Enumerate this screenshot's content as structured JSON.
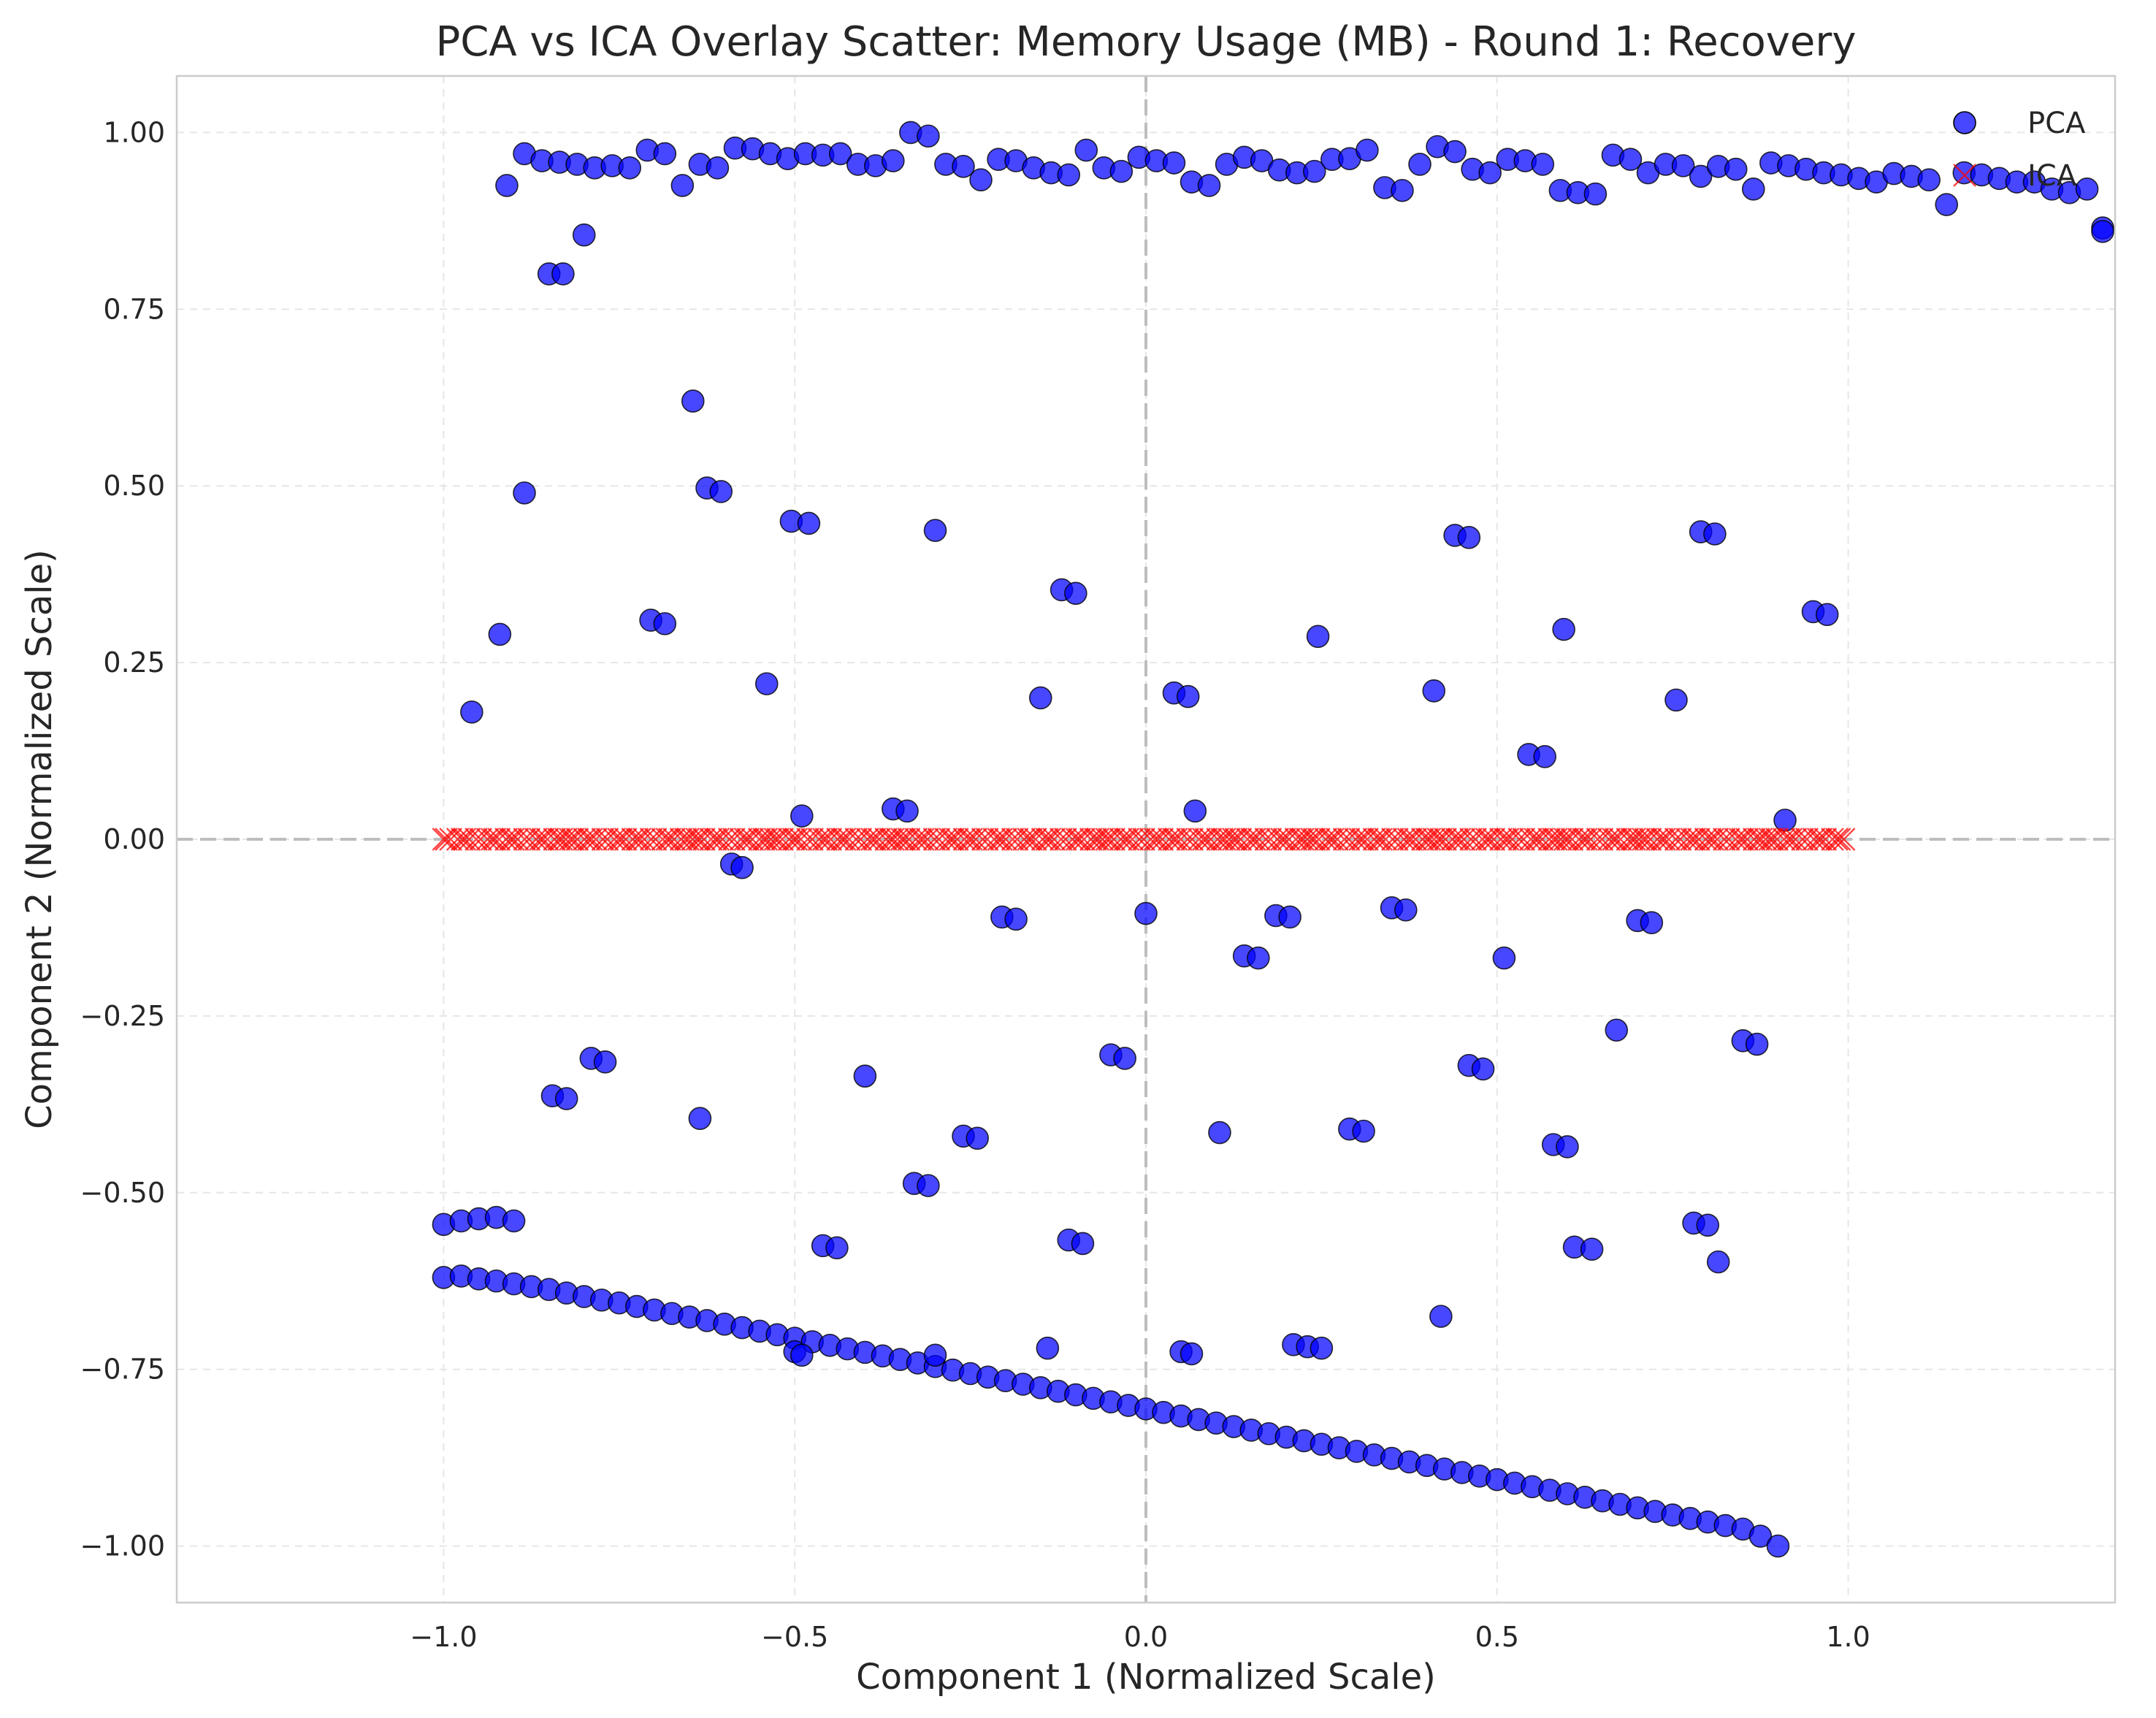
{
  "chart_data": {
    "type": "scatter",
    "title": "PCA vs ICA Overlay Scatter: Memory Usage (MB) - Round 1: Recovery",
    "xlabel": "Component 1 (Normalized Scale)",
    "ylabel": "Component 2 (Normalized Scale)",
    "xlim": [
      -1.38,
      1.38
    ],
    "ylim": [
      -1.08,
      1.08
    ],
    "xticks": [
      -1.0,
      -0.5,
      0.0,
      0.5,
      1.0
    ],
    "xtick_labels": [
      "−1.0",
      "−0.5",
      "0.0",
      "0.5",
      "1.0"
    ],
    "yticks": [
      -1.0,
      -0.75,
      -0.5,
      -0.25,
      0.0,
      0.25,
      0.5,
      0.75,
      1.0
    ],
    "ytick_labels": [
      "−1.00",
      "−0.75",
      "−0.50",
      "−0.25",
      "0.00",
      "0.25",
      "0.50",
      "0.75",
      "1.00"
    ],
    "grid": true,
    "reference_lines": {
      "x": 0,
      "y": 0
    },
    "legend_position": "top-right",
    "series": [
      {
        "name": "PCA",
        "marker": "circle",
        "color": "#0000ff",
        "edge_color": "#000000",
        "points": [
          [
            -0.91,
            0.925
          ],
          [
            -0.885,
            0.97
          ],
          [
            -0.86,
            0.96
          ],
          [
            -0.835,
            0.958
          ],
          [
            -0.81,
            0.955
          ],
          [
            -0.785,
            0.95
          ],
          [
            -0.76,
            0.953
          ],
          [
            -0.735,
            0.95
          ],
          [
            -0.71,
            0.975
          ],
          [
            -0.685,
            0.97
          ],
          [
            -0.66,
            0.925
          ],
          [
            -0.635,
            0.955
          ],
          [
            -0.61,
            0.95
          ],
          [
            -0.585,
            0.978
          ],
          [
            -0.56,
            0.977
          ],
          [
            -0.535,
            0.97
          ],
          [
            -0.51,
            0.963
          ],
          [
            -0.485,
            0.97
          ],
          [
            -0.46,
            0.968
          ],
          [
            -0.435,
            0.97
          ],
          [
            -0.41,
            0.955
          ],
          [
            -0.385,
            0.953
          ],
          [
            -0.36,
            0.96
          ],
          [
            -0.335,
            1.0
          ],
          [
            -0.31,
            0.995
          ],
          [
            -0.285,
            0.955
          ],
          [
            -0.26,
            0.952
          ],
          [
            -0.235,
            0.933
          ],
          [
            -0.21,
            0.962
          ],
          [
            -0.185,
            0.96
          ],
          [
            -0.16,
            0.95
          ],
          [
            -0.135,
            0.943
          ],
          [
            -0.11,
            0.94
          ],
          [
            -0.085,
            0.975
          ],
          [
            -0.06,
            0.95
          ],
          [
            -0.035,
            0.945
          ],
          [
            -0.01,
            0.965
          ],
          [
            0.015,
            0.96
          ],
          [
            0.04,
            0.957
          ],
          [
            0.065,
            0.93
          ],
          [
            0.09,
            0.925
          ],
          [
            0.115,
            0.955
          ],
          [
            0.14,
            0.965
          ],
          [
            0.165,
            0.96
          ],
          [
            0.19,
            0.947
          ],
          [
            0.215,
            0.943
          ],
          [
            0.24,
            0.945
          ],
          [
            0.265,
            0.962
          ],
          [
            0.29,
            0.963
          ],
          [
            0.315,
            0.975
          ],
          [
            0.34,
            0.922
          ],
          [
            0.365,
            0.918
          ],
          [
            0.39,
            0.955
          ],
          [
            0.415,
            0.98
          ],
          [
            0.44,
            0.973
          ],
          [
            0.465,
            0.948
          ],
          [
            0.49,
            0.943
          ],
          [
            0.515,
            0.962
          ],
          [
            0.54,
            0.96
          ],
          [
            0.565,
            0.955
          ],
          [
            0.59,
            0.918
          ],
          [
            0.615,
            0.915
          ],
          [
            0.64,
            0.913
          ],
          [
            0.665,
            0.968
          ],
          [
            0.69,
            0.962
          ],
          [
            0.715,
            0.943
          ],
          [
            0.74,
            0.955
          ],
          [
            0.765,
            0.953
          ],
          [
            0.79,
            0.938
          ],
          [
            0.815,
            0.952
          ],
          [
            0.84,
            0.948
          ],
          [
            0.865,
            0.92
          ],
          [
            0.89,
            0.957
          ],
          [
            0.915,
            0.953
          ],
          [
            0.94,
            0.948
          ],
          [
            0.965,
            0.943
          ],
          [
            0.99,
            0.94
          ],
          [
            1.015,
            0.935
          ],
          [
            1.04,
            0.93
          ],
          [
            1.065,
            0.942
          ],
          [
            1.09,
            0.938
          ],
          [
            1.115,
            0.933
          ],
          [
            1.14,
            0.898
          ],
          [
            1.165,
            0.943
          ],
          [
            1.19,
            0.94
          ],
          [
            1.215,
            0.935
          ],
          [
            1.24,
            0.93
          ],
          [
            1.265,
            0.93
          ],
          [
            1.29,
            0.92
          ],
          [
            1.315,
            0.915
          ],
          [
            1.34,
            0.92
          ],
          [
            1.365,
            0.865
          ],
          [
            1.39,
            0.86
          ],
          [
            -0.85,
            0.8
          ],
          [
            -0.83,
            0.8
          ],
          [
            -0.8,
            0.855
          ],
          [
            -1.0,
            -0.545
          ],
          [
            -0.975,
            -0.54
          ],
          [
            -0.95,
            -0.537
          ],
          [
            -0.925,
            -0.535
          ],
          [
            -0.9,
            -0.54
          ],
          [
            -1.0,
            -0.62
          ],
          [
            -0.975,
            -0.618
          ],
          [
            -0.95,
            -0.622
          ],
          [
            -0.925,
            -0.625
          ],
          [
            -0.9,
            -0.629
          ],
          [
            -0.875,
            -0.633
          ],
          [
            -0.85,
            -0.637
          ],
          [
            -0.825,
            -0.642
          ],
          [
            -0.8,
            -0.647
          ],
          [
            -0.775,
            -0.652
          ],
          [
            -0.75,
            -0.656
          ],
          [
            -0.725,
            -0.661
          ],
          [
            -0.7,
            -0.666
          ],
          [
            -0.675,
            -0.671
          ],
          [
            -0.65,
            -0.676
          ],
          [
            -0.625,
            -0.681
          ],
          [
            -0.6,
            -0.686
          ],
          [
            -0.575,
            -0.691
          ],
          [
            -0.55,
            -0.696
          ],
          [
            -0.525,
            -0.701
          ],
          [
            -0.5,
            -0.706
          ],
          [
            -0.475,
            -0.711
          ],
          [
            -0.45,
            -0.716
          ],
          [
            -0.425,
            -0.721
          ],
          [
            -0.4,
            -0.726
          ],
          [
            -0.375,
            -0.731
          ],
          [
            -0.35,
            -0.736
          ],
          [
            -0.325,
            -0.741
          ],
          [
            -0.3,
            -0.746
          ],
          [
            -0.275,
            -0.751
          ],
          [
            -0.25,
            -0.756
          ],
          [
            -0.225,
            -0.761
          ],
          [
            -0.2,
            -0.766
          ],
          [
            -0.175,
            -0.771
          ],
          [
            -0.15,
            -0.776
          ],
          [
            -0.125,
            -0.781
          ],
          [
            -0.1,
            -0.786
          ],
          [
            -0.075,
            -0.791
          ],
          [
            -0.05,
            -0.796
          ],
          [
            -0.025,
            -0.801
          ],
          [
            0.0,
            -0.806
          ],
          [
            0.025,
            -0.811
          ],
          [
            0.05,
            -0.816
          ],
          [
            0.075,
            -0.821
          ],
          [
            0.1,
            -0.826
          ],
          [
            0.125,
            -0.831
          ],
          [
            0.15,
            -0.836
          ],
          [
            0.175,
            -0.841
          ],
          [
            0.2,
            -0.846
          ],
          [
            0.225,
            -0.851
          ],
          [
            0.25,
            -0.856
          ],
          [
            0.275,
            -0.861
          ],
          [
            0.3,
            -0.866
          ],
          [
            0.325,
            -0.871
          ],
          [
            0.35,
            -0.876
          ],
          [
            0.375,
            -0.881
          ],
          [
            0.4,
            -0.886
          ],
          [
            0.425,
            -0.891
          ],
          [
            0.45,
            -0.896
          ],
          [
            0.475,
            -0.901
          ],
          [
            0.5,
            -0.906
          ],
          [
            0.525,
            -0.911
          ],
          [
            0.55,
            -0.916
          ],
          [
            0.575,
            -0.921
          ],
          [
            0.6,
            -0.926
          ],
          [
            0.625,
            -0.931
          ],
          [
            0.65,
            -0.936
          ],
          [
            0.675,
            -0.941
          ],
          [
            0.7,
            -0.946
          ],
          [
            0.725,
            -0.951
          ],
          [
            0.75,
            -0.956
          ],
          [
            0.775,
            -0.961
          ],
          [
            0.8,
            -0.966
          ],
          [
            0.825,
            -0.971
          ],
          [
            0.85,
            -0.976
          ],
          [
            0.875,
            -0.986
          ],
          [
            0.9,
            -1.0
          ],
          [
            -0.5,
            -0.725
          ],
          [
            -0.49,
            -0.73
          ],
          [
            -0.3,
            -0.73
          ],
          [
            -0.14,
            -0.72
          ],
          [
            0.05,
            -0.725
          ],
          [
            0.065,
            -0.728
          ],
          [
            0.21,
            -0.715
          ],
          [
            0.23,
            -0.718
          ],
          [
            0.25,
            -0.72
          ],
          [
            0.42,
            -0.675
          ],
          [
            -0.96,
            0.18
          ],
          [
            -0.92,
            0.29
          ],
          [
            -0.885,
            0.49
          ],
          [
            -0.645,
            0.62
          ],
          [
            -0.625,
            0.497
          ],
          [
            -0.605,
            0.492
          ],
          [
            -0.705,
            0.31
          ],
          [
            -0.685,
            0.305
          ],
          [
            -0.54,
            0.22
          ],
          [
            -0.505,
            0.45
          ],
          [
            -0.48,
            0.447
          ],
          [
            -0.3,
            0.437
          ],
          [
            -0.12,
            0.353
          ],
          [
            -0.1,
            0.348
          ],
          [
            -0.15,
            0.2
          ],
          [
            0.04,
            0.207
          ],
          [
            0.06,
            0.202
          ],
          [
            0.245,
            0.287
          ],
          [
            0.44,
            0.43
          ],
          [
            0.46,
            0.427
          ],
          [
            0.41,
            0.21
          ],
          [
            0.545,
            0.12
          ],
          [
            0.568,
            0.117
          ],
          [
            0.595,
            0.297
          ],
          [
            0.755,
            0.197
          ],
          [
            0.79,
            0.435
          ],
          [
            0.81,
            0.432
          ],
          [
            0.95,
            0.322
          ],
          [
            0.97,
            0.318
          ],
          [
            -0.49,
            0.033
          ],
          [
            -0.36,
            0.043
          ],
          [
            -0.34,
            0.04
          ],
          [
            0.07,
            0.04
          ],
          [
            0.91,
            0.027
          ],
          [
            -0.59,
            -0.035
          ],
          [
            -0.575,
            -0.04
          ],
          [
            -0.205,
            -0.11
          ],
          [
            -0.185,
            -0.113
          ],
          [
            0.0,
            -0.105
          ],
          [
            0.14,
            -0.165
          ],
          [
            0.16,
            -0.168
          ],
          [
            0.185,
            -0.108
          ],
          [
            0.205,
            -0.11
          ],
          [
            0.35,
            -0.097
          ],
          [
            0.37,
            -0.1
          ],
          [
            0.51,
            -0.168
          ],
          [
            0.7,
            -0.115
          ],
          [
            0.72,
            -0.118
          ],
          [
            -0.79,
            -0.31
          ],
          [
            -0.77,
            -0.315
          ],
          [
            -0.845,
            -0.363
          ],
          [
            -0.825,
            -0.367
          ],
          [
            -0.635,
            -0.395
          ],
          [
            -0.4,
            -0.335
          ],
          [
            -0.26,
            -0.42
          ],
          [
            -0.24,
            -0.423
          ],
          [
            -0.05,
            -0.305
          ],
          [
            -0.03,
            -0.31
          ],
          [
            0.105,
            -0.415
          ],
          [
            0.29,
            -0.41
          ],
          [
            0.31,
            -0.413
          ],
          [
            0.46,
            -0.32
          ],
          [
            0.48,
            -0.325
          ],
          [
            0.58,
            -0.432
          ],
          [
            0.6,
            -0.435
          ],
          [
            0.67,
            -0.27
          ],
          [
            0.85,
            -0.285
          ],
          [
            0.87,
            -0.29
          ],
          [
            -0.33,
            -0.487
          ],
          [
            -0.31,
            -0.49
          ],
          [
            -0.46,
            -0.575
          ],
          [
            -0.44,
            -0.578
          ],
          [
            -0.11,
            -0.567
          ],
          [
            -0.09,
            -0.572
          ],
          [
            0.61,
            -0.577
          ],
          [
            0.635,
            -0.58
          ],
          [
            0.78,
            -0.543
          ],
          [
            0.8,
            -0.546
          ],
          [
            0.815,
            -0.598
          ]
        ]
      },
      {
        "name": "ICA",
        "marker": "x",
        "color": "#ff0000",
        "x_range": [
          -1.0,
          1.0
        ],
        "y_value": 0.0,
        "point_count": 300
      }
    ]
  }
}
